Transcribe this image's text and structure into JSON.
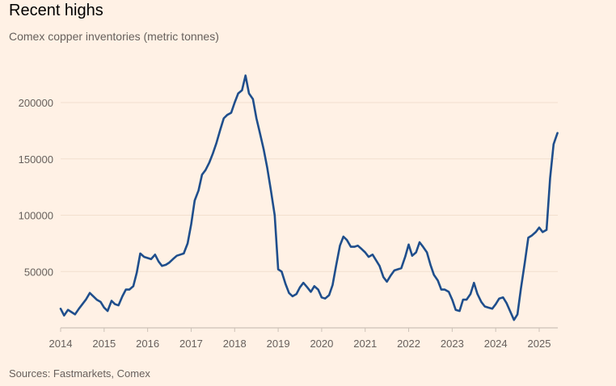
{
  "header": {
    "title": "Recent highs",
    "subtitle": "Comex copper inventories (metric tonnes)"
  },
  "footer": {
    "source": "Sources: Fastmarkets, Comex"
  },
  "chart_data": {
    "type": "line",
    "title": "Recent highs",
    "subtitle": "Comex copper inventories (metric tonnes)",
    "xlabel": "",
    "ylabel": "",
    "xlim": [
      2014,
      2025.5
    ],
    "ylim": [
      0,
      225000
    ],
    "yticks": [
      50000,
      100000,
      150000,
      200000
    ],
    "ytick_labels": [
      "50000",
      "100000",
      "150000",
      "200000"
    ],
    "xticks": [
      2014,
      2015,
      2016,
      2017,
      2018,
      2019,
      2020,
      2021,
      2022,
      2023,
      2024,
      2025
    ],
    "xtick_labels": [
      "2014",
      "2015",
      "2016",
      "2017",
      "2018",
      "2019",
      "2020",
      "2021",
      "2022",
      "2023",
      "2024",
      "2025"
    ],
    "grid": true,
    "legend": "none",
    "color": "#1f4e8c",
    "series": [
      {
        "points": [
          [
            2014.0,
            17000
          ],
          [
            2014.08,
            11000
          ],
          [
            2014.17,
            16000
          ],
          [
            2014.25,
            14000
          ],
          [
            2014.33,
            12000
          ],
          [
            2014.42,
            17000
          ],
          [
            2014.5,
            21000
          ],
          [
            2014.58,
            25000
          ],
          [
            2014.67,
            31000
          ],
          [
            2014.75,
            28000
          ],
          [
            2014.83,
            25000
          ],
          [
            2014.92,
            23000
          ],
          [
            2015.0,
            18000
          ],
          [
            2015.08,
            15000
          ],
          [
            2015.17,
            24000
          ],
          [
            2015.25,
            21000
          ],
          [
            2015.33,
            20000
          ],
          [
            2015.42,
            28000
          ],
          [
            2015.5,
            34000
          ],
          [
            2015.58,
            34000
          ],
          [
            2015.67,
            37000
          ],
          [
            2015.75,
            49000
          ],
          [
            2015.83,
            66000
          ],
          [
            2015.92,
            63000
          ],
          [
            2016.0,
            62000
          ],
          [
            2016.08,
            61000
          ],
          [
            2016.17,
            65000
          ],
          [
            2016.25,
            59000
          ],
          [
            2016.33,
            55000
          ],
          [
            2016.42,
            56000
          ],
          [
            2016.5,
            58000
          ],
          [
            2016.58,
            61000
          ],
          [
            2016.67,
            64000
          ],
          [
            2016.75,
            65000
          ],
          [
            2016.83,
            66000
          ],
          [
            2016.92,
            75000
          ],
          [
            2017.0,
            92000
          ],
          [
            2017.08,
            113000
          ],
          [
            2017.17,
            122000
          ],
          [
            2017.25,
            136000
          ],
          [
            2017.33,
            140000
          ],
          [
            2017.42,
            147000
          ],
          [
            2017.5,
            155000
          ],
          [
            2017.58,
            164000
          ],
          [
            2017.67,
            176000
          ],
          [
            2017.75,
            186000
          ],
          [
            2017.83,
            189000
          ],
          [
            2017.92,
            191000
          ],
          [
            2018.0,
            200000
          ],
          [
            2018.08,
            208000
          ],
          [
            2018.17,
            211000
          ],
          [
            2018.25,
            224000
          ],
          [
            2018.33,
            208000
          ],
          [
            2018.42,
            203000
          ],
          [
            2018.5,
            186000
          ],
          [
            2018.58,
            173000
          ],
          [
            2018.67,
            158000
          ],
          [
            2018.75,
            142000
          ],
          [
            2018.83,
            123000
          ],
          [
            2018.92,
            100000
          ],
          [
            2019.0,
            52000
          ],
          [
            2019.08,
            50000
          ],
          [
            2019.17,
            39000
          ],
          [
            2019.25,
            31000
          ],
          [
            2019.33,
            28000
          ],
          [
            2019.42,
            30000
          ],
          [
            2019.5,
            36000
          ],
          [
            2019.58,
            40000
          ],
          [
            2019.67,
            36000
          ],
          [
            2019.75,
            32000
          ],
          [
            2019.83,
            37000
          ],
          [
            2019.92,
            34000
          ],
          [
            2020.0,
            27000
          ],
          [
            2020.08,
            26000
          ],
          [
            2020.17,
            29000
          ],
          [
            2020.25,
            38000
          ],
          [
            2020.33,
            55000
          ],
          [
            2020.42,
            73000
          ],
          [
            2020.5,
            81000
          ],
          [
            2020.58,
            78000
          ],
          [
            2020.67,
            72000
          ],
          [
            2020.75,
            72000
          ],
          [
            2020.83,
            73000
          ],
          [
            2020.92,
            70000
          ],
          [
            2021.0,
            67000
          ],
          [
            2021.08,
            63000
          ],
          [
            2021.17,
            65000
          ],
          [
            2021.25,
            60000
          ],
          [
            2021.33,
            55000
          ],
          [
            2021.42,
            45000
          ],
          [
            2021.5,
            41000
          ],
          [
            2021.58,
            46000
          ],
          [
            2021.67,
            51000
          ],
          [
            2021.75,
            52000
          ],
          [
            2021.83,
            53000
          ],
          [
            2021.92,
            63000
          ],
          [
            2022.0,
            74000
          ],
          [
            2022.08,
            64000
          ],
          [
            2022.17,
            67000
          ],
          [
            2022.25,
            76000
          ],
          [
            2022.33,
            72000
          ],
          [
            2022.42,
            67000
          ],
          [
            2022.5,
            56000
          ],
          [
            2022.58,
            47000
          ],
          [
            2022.67,
            42000
          ],
          [
            2022.75,
            34000
          ],
          [
            2022.83,
            34000
          ],
          [
            2022.92,
            32000
          ],
          [
            2023.0,
            25000
          ],
          [
            2023.08,
            16000
          ],
          [
            2023.17,
            15000
          ],
          [
            2023.25,
            25000
          ],
          [
            2023.33,
            25000
          ],
          [
            2023.42,
            30000
          ],
          [
            2023.5,
            40000
          ],
          [
            2023.58,
            30000
          ],
          [
            2023.67,
            23000
          ],
          [
            2023.75,
            19000
          ],
          [
            2023.83,
            18000
          ],
          [
            2023.92,
            17000
          ],
          [
            2024.0,
            21000
          ],
          [
            2024.08,
            26000
          ],
          [
            2024.17,
            27000
          ],
          [
            2024.25,
            22000
          ],
          [
            2024.33,
            15000
          ],
          [
            2024.42,
            7000
          ],
          [
            2024.5,
            12000
          ],
          [
            2024.58,
            35000
          ],
          [
            2024.67,
            58000
          ],
          [
            2024.75,
            80000
          ],
          [
            2024.83,
            82000
          ],
          [
            2024.92,
            85000
          ],
          [
            2025.0,
            89000
          ],
          [
            2025.08,
            85000
          ],
          [
            2025.17,
            87000
          ],
          [
            2025.25,
            133000
          ],
          [
            2025.33,
            163000
          ],
          [
            2025.42,
            173000
          ]
        ]
      }
    ]
  }
}
